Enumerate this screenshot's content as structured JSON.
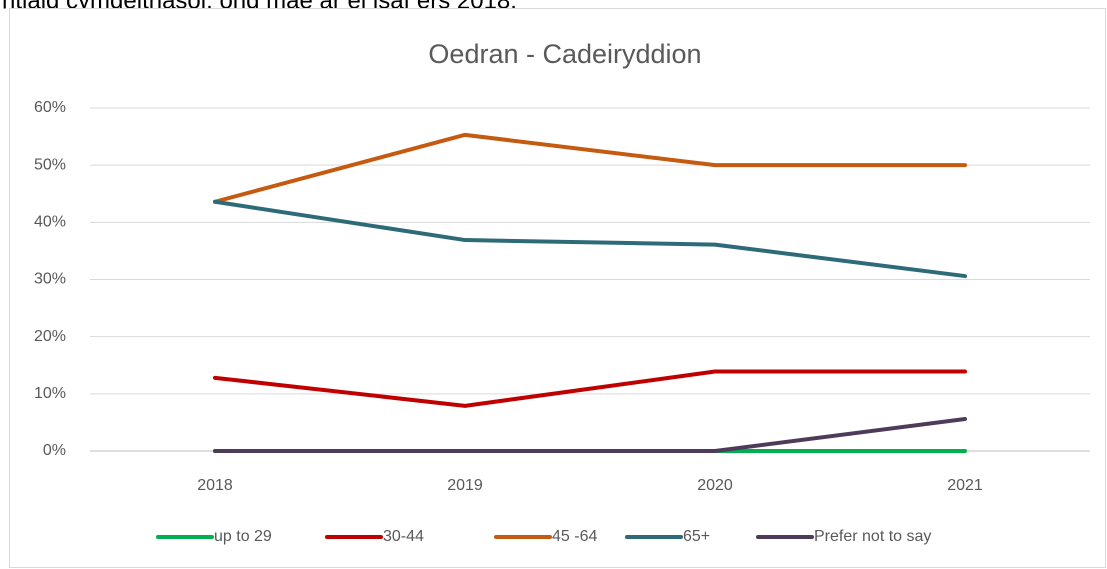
{
  "text_above": "ntlaid cymdeithasol, ond mae ar ei isaf ers 2018.",
  "chart_data": {
    "type": "line",
    "title": "Oedran - Cadeiryddion",
    "categories": [
      "2018",
      "2019",
      "2020",
      "2021"
    ],
    "series": [
      {
        "name": "up to 29",
        "color": "#00b050",
        "values": [
          0,
          0,
          0,
          0
        ]
      },
      {
        "name": "30-44",
        "color": "#c00000",
        "values": [
          12.8,
          7.9,
          13.9,
          13.9
        ]
      },
      {
        "name": "45 -64",
        "color": "#c55a11",
        "values": [
          43.6,
          55.3,
          50,
          50
        ]
      },
      {
        "name": "65+",
        "color": "#2e6b78",
        "values": [
          43.6,
          36.9,
          36.1,
          30.6
        ]
      },
      {
        "name": "Prefer not to say",
        "color": "#4e3b5a",
        "values": [
          0,
          0,
          0,
          5.6
        ]
      }
    ],
    "ylim": [
      0,
      60
    ],
    "yticks": [
      {
        "value": 0,
        "label": "0%"
      },
      {
        "value": 10,
        "label": "10%"
      },
      {
        "value": 20,
        "label": "20%"
      },
      {
        "value": 30,
        "label": "30%"
      },
      {
        "value": 40,
        "label": "40%"
      },
      {
        "value": 50,
        "label": "50%"
      },
      {
        "value": 60,
        "label": "60%"
      }
    ],
    "grid": true,
    "legend": "bottom"
  }
}
